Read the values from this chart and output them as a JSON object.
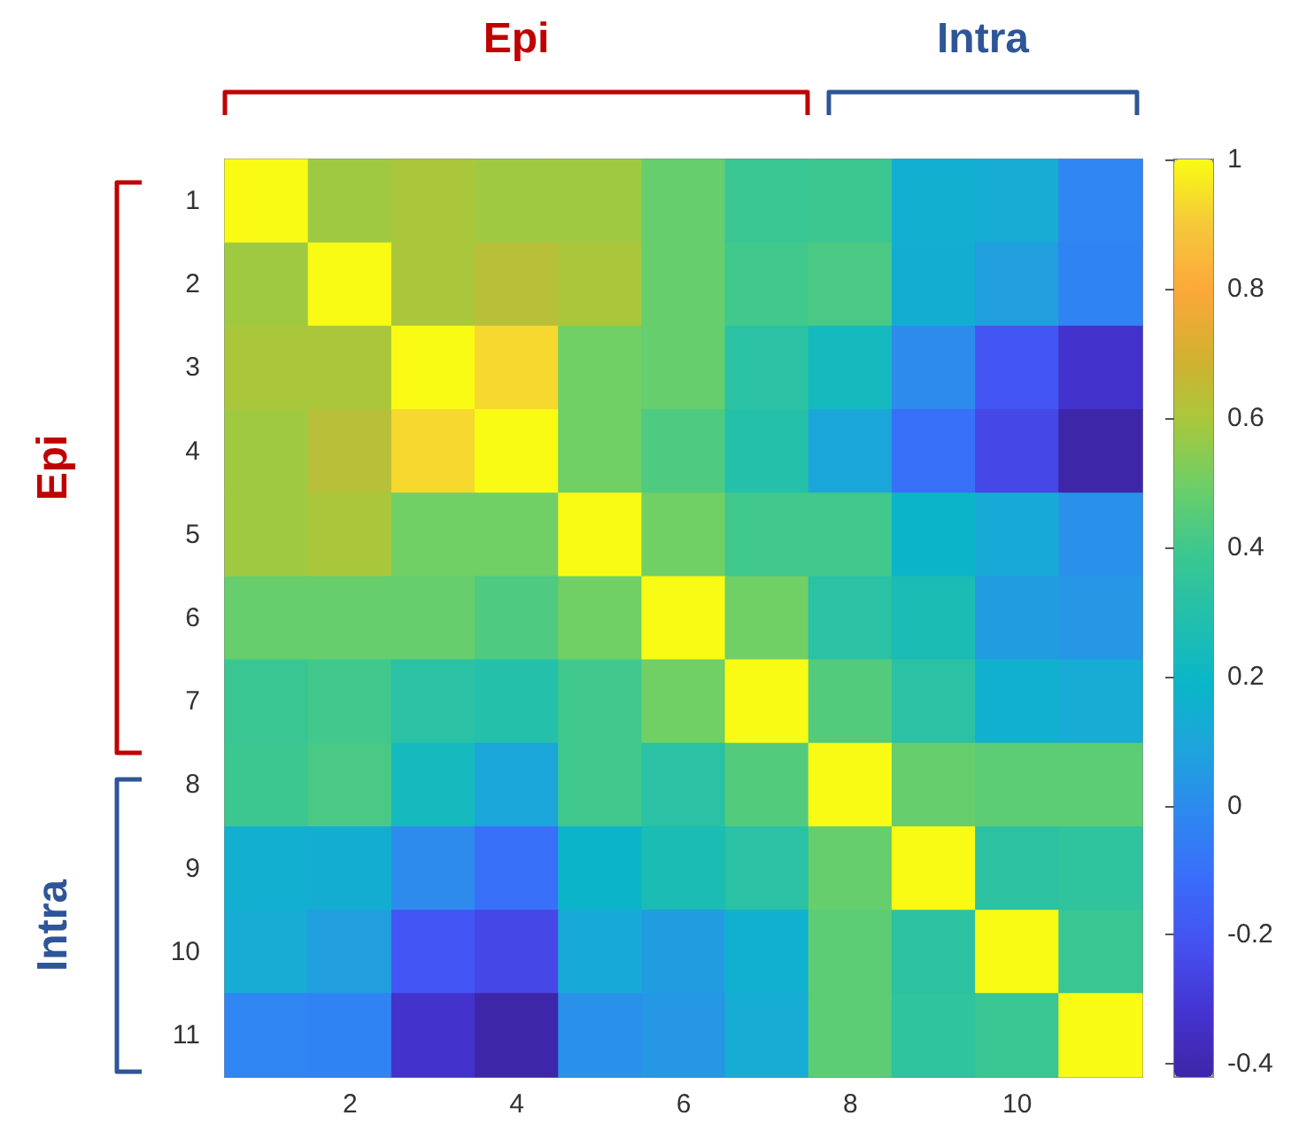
{
  "chart_data": {
    "type": "heatmap",
    "categories": [
      null,
      "2",
      null,
      "4",
      null,
      "6",
      null,
      "8",
      null,
      "10",
      null
    ],
    "y_categories": [
      "1",
      "2",
      "3",
      "4",
      "5",
      "6",
      "7",
      "8",
      "9",
      "10",
      "11"
    ],
    "cells": [
      [
        1,
        0.58,
        0.6,
        0.58,
        0.58,
        0.48,
        0.38,
        0.39,
        0.15,
        0.13,
        -0.02
      ],
      [
        0.58,
        1,
        0.6,
        0.63,
        0.6,
        0.48,
        0.4,
        0.42,
        0.14,
        0.07,
        -0.03
      ],
      [
        0.6,
        0.6,
        1,
        0.93,
        0.5,
        0.48,
        0.32,
        0.23,
        0.0,
        -0.2,
        -0.33
      ],
      [
        0.58,
        0.63,
        0.93,
        1,
        0.5,
        0.43,
        0.3,
        0.1,
        -0.1,
        -0.25,
        -0.42
      ],
      [
        0.58,
        0.6,
        0.5,
        0.5,
        1,
        0.5,
        0.4,
        0.4,
        0.18,
        0.12,
        0.02
      ],
      [
        0.48,
        0.48,
        0.48,
        0.43,
        0.5,
        1,
        0.5,
        0.32,
        0.26,
        0.06,
        0.04
      ],
      [
        0.38,
        0.4,
        0.32,
        0.3,
        0.4,
        0.5,
        1,
        0.44,
        0.32,
        0.16,
        0.13
      ],
      [
        0.39,
        0.42,
        0.23,
        0.1,
        0.4,
        0.32,
        0.44,
        1,
        0.48,
        0.46,
        0.46
      ],
      [
        0.15,
        0.14,
        0.0,
        -0.1,
        0.18,
        0.26,
        0.32,
        0.48,
        1,
        0.33,
        0.34
      ],
      [
        0.13,
        0.07,
        -0.2,
        -0.25,
        0.12,
        0.06,
        0.16,
        0.46,
        0.33,
        1,
        0.38
      ],
      [
        -0.02,
        -0.03,
        -0.33,
        -0.42,
        0.02,
        0.04,
        0.13,
        0.46,
        0.34,
        0.38,
        1
      ]
    ],
    "clim": [
      -0.42,
      1
    ],
    "cticks": [
      -0.4,
      -0.2,
      0,
      0.2,
      0.4,
      0.6,
      0.8,
      1
    ],
    "annotations": [
      "Epi",
      "Intra",
      "Epi",
      "Intra"
    ]
  }
}
